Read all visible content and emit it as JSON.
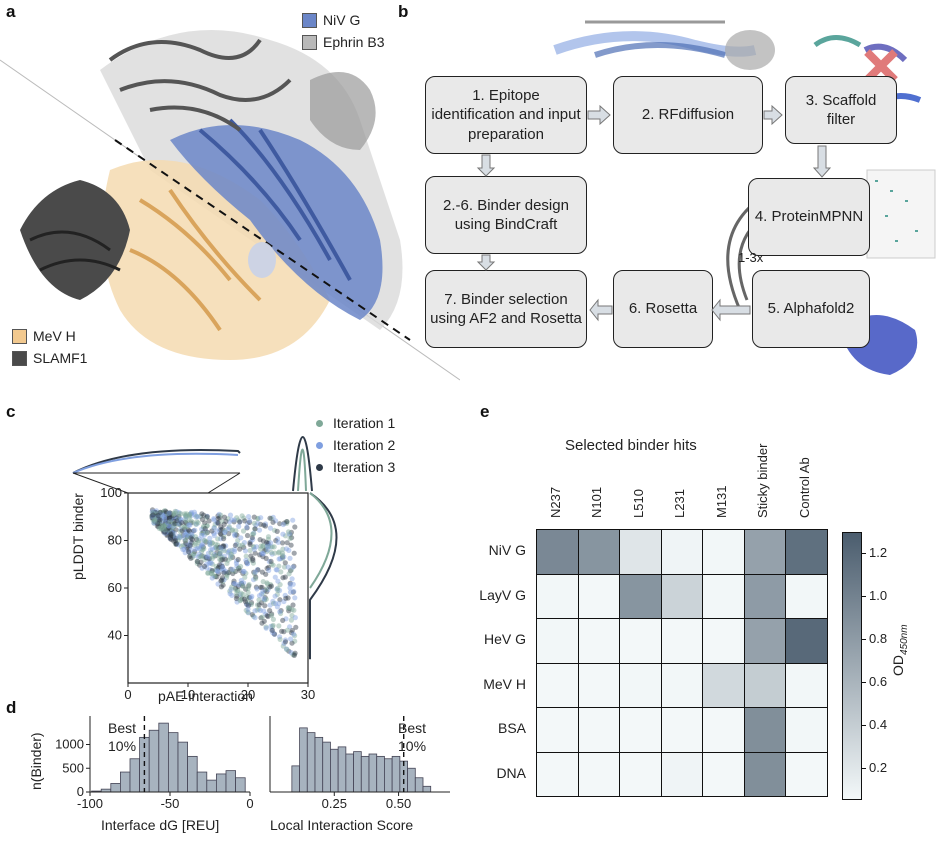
{
  "panels": {
    "a": "a",
    "b": "b",
    "c": "c",
    "d": "d",
    "e": "e"
  },
  "panel_a": {
    "legend": [
      {
        "label": "NiV G",
        "color": "#6b86c8"
      },
      {
        "label": "Ephrin B3",
        "color": "#b9b9b9"
      },
      {
        "label": "MeV H",
        "color": "#f2c98f"
      },
      {
        "label": "SLAMF1",
        "color": "#4a4a4a"
      }
    ]
  },
  "panel_b": {
    "steps": [
      {
        "id": "s1",
        "label": "1. Epitope identification and input preparation"
      },
      {
        "id": "s2",
        "label": "2. RFdiffusion"
      },
      {
        "id": "s3",
        "label": "3. Scaffold filter"
      },
      {
        "id": "s26",
        "label": "2.-6. Binder design using BindCraft"
      },
      {
        "id": "s4",
        "label": "4. ProteinMPNN"
      },
      {
        "id": "s7",
        "label": "7. Binder selection using AF2 and Rosetta"
      },
      {
        "id": "s6",
        "label": "6. Rosetta"
      },
      {
        "id": "s5",
        "label": "5. Alphafold2"
      }
    ],
    "loop_label": "1-3x"
  },
  "panel_c": {
    "legend": [
      {
        "label": "Iteration 1",
        "color": "#7fa898"
      },
      {
        "label": "Iteration 2",
        "color": "#7f9fe0"
      },
      {
        "label": "Iteration 3",
        "color": "#2f3a48"
      }
    ],
    "chart_data": {
      "type": "scatter",
      "xlabel": "pAE interaction",
      "ylabel": "pLDDT binder",
      "xlim": [
        0,
        30
      ],
      "ylim": [
        20,
        100
      ],
      "xticks": [
        "0",
        "10",
        "20",
        "30"
      ],
      "yticks": [
        "40",
        "60",
        "80",
        "100"
      ]
    }
  },
  "panel_d": {
    "ylabel": "n(Binder)",
    "best_label_1": "Best",
    "best_label_2": "10%",
    "left": {
      "type": "bar",
      "xlabel": "Interface dG [REU]",
      "xticks": [
        "-100",
        "-50",
        "0"
      ],
      "yticks": [
        "0",
        "500",
        "1000"
      ],
      "xlim": [
        -100,
        0
      ],
      "ylim": [
        0,
        1600
      ],
      "cutoff": -66,
      "bins": [
        -96,
        -90,
        -84,
        -78,
        -72,
        -66,
        -60,
        -54,
        -48,
        -42,
        -36,
        -30,
        -24,
        -18,
        -12,
        -6
      ],
      "values": [
        20,
        60,
        180,
        420,
        700,
        1150,
        1300,
        1450,
        1250,
        1050,
        750,
        420,
        250,
        380,
        450,
        300
      ]
    },
    "right": {
      "type": "bar",
      "xlabel": "Local Interaction Score",
      "xticks": [
        "0.25",
        "0.50"
      ],
      "xlim": [
        0.0,
        0.7
      ],
      "ylim": [
        0,
        1600
      ],
      "cutoff": 0.52,
      "bins": [
        0.1,
        0.13,
        0.16,
        0.19,
        0.22,
        0.25,
        0.28,
        0.31,
        0.34,
        0.37,
        0.4,
        0.43,
        0.46,
        0.49,
        0.52,
        0.55,
        0.58,
        0.61
      ],
      "values": [
        550,
        1350,
        1250,
        1150,
        1050,
        900,
        950,
        800,
        850,
        750,
        800,
        750,
        700,
        750,
        650,
        500,
        300,
        120
      ]
    }
  },
  "panel_e": {
    "title": "Selected binder hits",
    "columns": [
      "N237",
      "N101",
      "L510",
      "L231",
      "M131",
      "Sticky binder",
      "Control Ab"
    ],
    "rows": [
      "NiV G",
      "LayV G",
      "HeV G",
      "MeV H",
      "BSA",
      "DNA"
    ],
    "values": [
      [
        0.95,
        0.85,
        0.2,
        0.08,
        0.06,
        0.75,
        1.15
      ],
      [
        0.06,
        0.05,
        0.85,
        0.35,
        0.06,
        0.8,
        0.06
      ],
      [
        0.06,
        0.05,
        0.05,
        0.05,
        0.05,
        0.75,
        1.2
      ],
      [
        0.05,
        0.05,
        0.06,
        0.06,
        0.3,
        0.4,
        0.06
      ],
      [
        0.05,
        0.05,
        0.05,
        0.05,
        0.05,
        0.9,
        0.06
      ],
      [
        0.05,
        0.05,
        0.05,
        0.08,
        0.05,
        0.9,
        0.05
      ]
    ],
    "colorbar": {
      "ticks": [
        "0.2",
        "0.4",
        "0.6",
        "0.8",
        "1.0",
        "1.2"
      ],
      "min": 0.05,
      "max": 1.3,
      "color_low": "#f3f8f9",
      "color_high": "#4b5d6e"
    },
    "colorbar_label": "OD",
    "colorbar_label_sub": "450nm"
  }
}
